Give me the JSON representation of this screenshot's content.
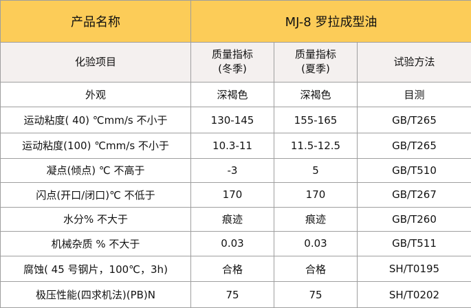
{
  "header": {
    "name_label": "产品名称",
    "product": "MJ-8 罗拉成型油",
    "bg_color": "#fccc58"
  },
  "columns": {
    "item": "化验项目",
    "winter_line1": "质量指标",
    "winter_line2": "(冬季)",
    "summer_line1": "质量指标",
    "summer_line2": "(夏季)",
    "method": "试验方法",
    "bg_color": "#f4f0ef"
  },
  "rows": [
    {
      "item": "外观",
      "winter": "深褐色",
      "summer": "深褐色",
      "method": "目测"
    },
    {
      "item": "运动粘度( 40) ℃mm/s 不小于",
      "winter": "130-145",
      "summer": "155-165",
      "method": "GB/T265"
    },
    {
      "item": "运动粘度(100) ℃mm/s 不小于",
      "winter": "10.3-11",
      "summer": "11.5-12.5",
      "method": "GB/T265"
    },
    {
      "item": "凝点(倾点) ℃  不高于",
      "winter": "-3",
      "summer": "5",
      "method": "GB/T510"
    },
    {
      "item": "闪点(开口/闭口)℃ 不低于",
      "winter": "170",
      "summer": "170",
      "method": "GB/T267"
    },
    {
      "item": "水分% 不大于",
      "winter": "痕迹",
      "summer": "痕迹",
      "method": "GB/T260"
    },
    {
      "item": "机械杂质 %  不大于",
      "winter": "0.03",
      "summer": "0.03",
      "method": "GB/T511"
    },
    {
      "item": "腐蚀( 45 号钢片，100℃，3h)",
      "winter": "合格",
      "summer": "合格",
      "method": "SH/T0195"
    },
    {
      "item": "极压性能(四求机法)(PB)N",
      "winter": "75",
      "summer": "75",
      "method": "SH/T0202"
    }
  ]
}
